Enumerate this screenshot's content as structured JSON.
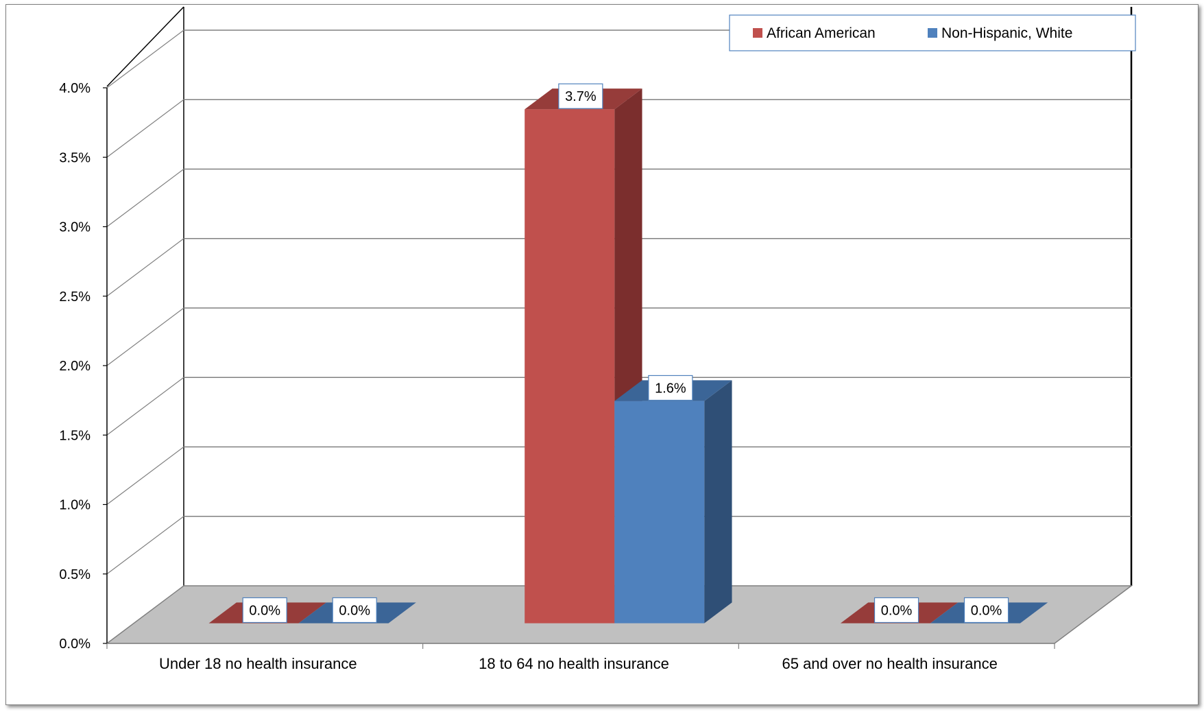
{
  "chart_data": {
    "type": "bar",
    "categories": [
      "Under 18  no health insurance",
      "18 to 64 no health insurance",
      "65 and over no health insurance"
    ],
    "series": [
      {
        "name": "African American",
        "values": [
          0.0,
          3.7,
          0.0
        ],
        "labels": [
          "0.0%",
          "3.7%",
          "0.0%"
        ],
        "color": "#C0504D",
        "side_color": "#7B2E2D",
        "top_color": "#963C3A"
      },
      {
        "name": "Non-Hispanic, White",
        "values": [
          0.0,
          1.6,
          0.0
        ],
        "labels": [
          "0.0%",
          "1.6%",
          "0.0%"
        ],
        "color": "#4F81BD",
        "side_color": "#2F4F76",
        "top_color": "#3B6597"
      }
    ],
    "yticks": [
      0.0,
      0.5,
      1.0,
      1.5,
      2.0,
      2.5,
      3.0,
      3.5,
      4.0
    ],
    "ytick_labels": [
      "0.0%",
      "0.5%",
      "1.0%",
      "1.5%",
      "2.0%",
      "2.5%",
      "3.0%",
      "3.5%",
      "4.0%"
    ],
    "ylim": [
      0,
      4.0
    ],
    "title": "",
    "xlabel": "",
    "ylabel": "",
    "grid": true,
    "legend": "top-right",
    "style": "3d-clustered-column",
    "floor_color": "#C0C0C0"
  }
}
